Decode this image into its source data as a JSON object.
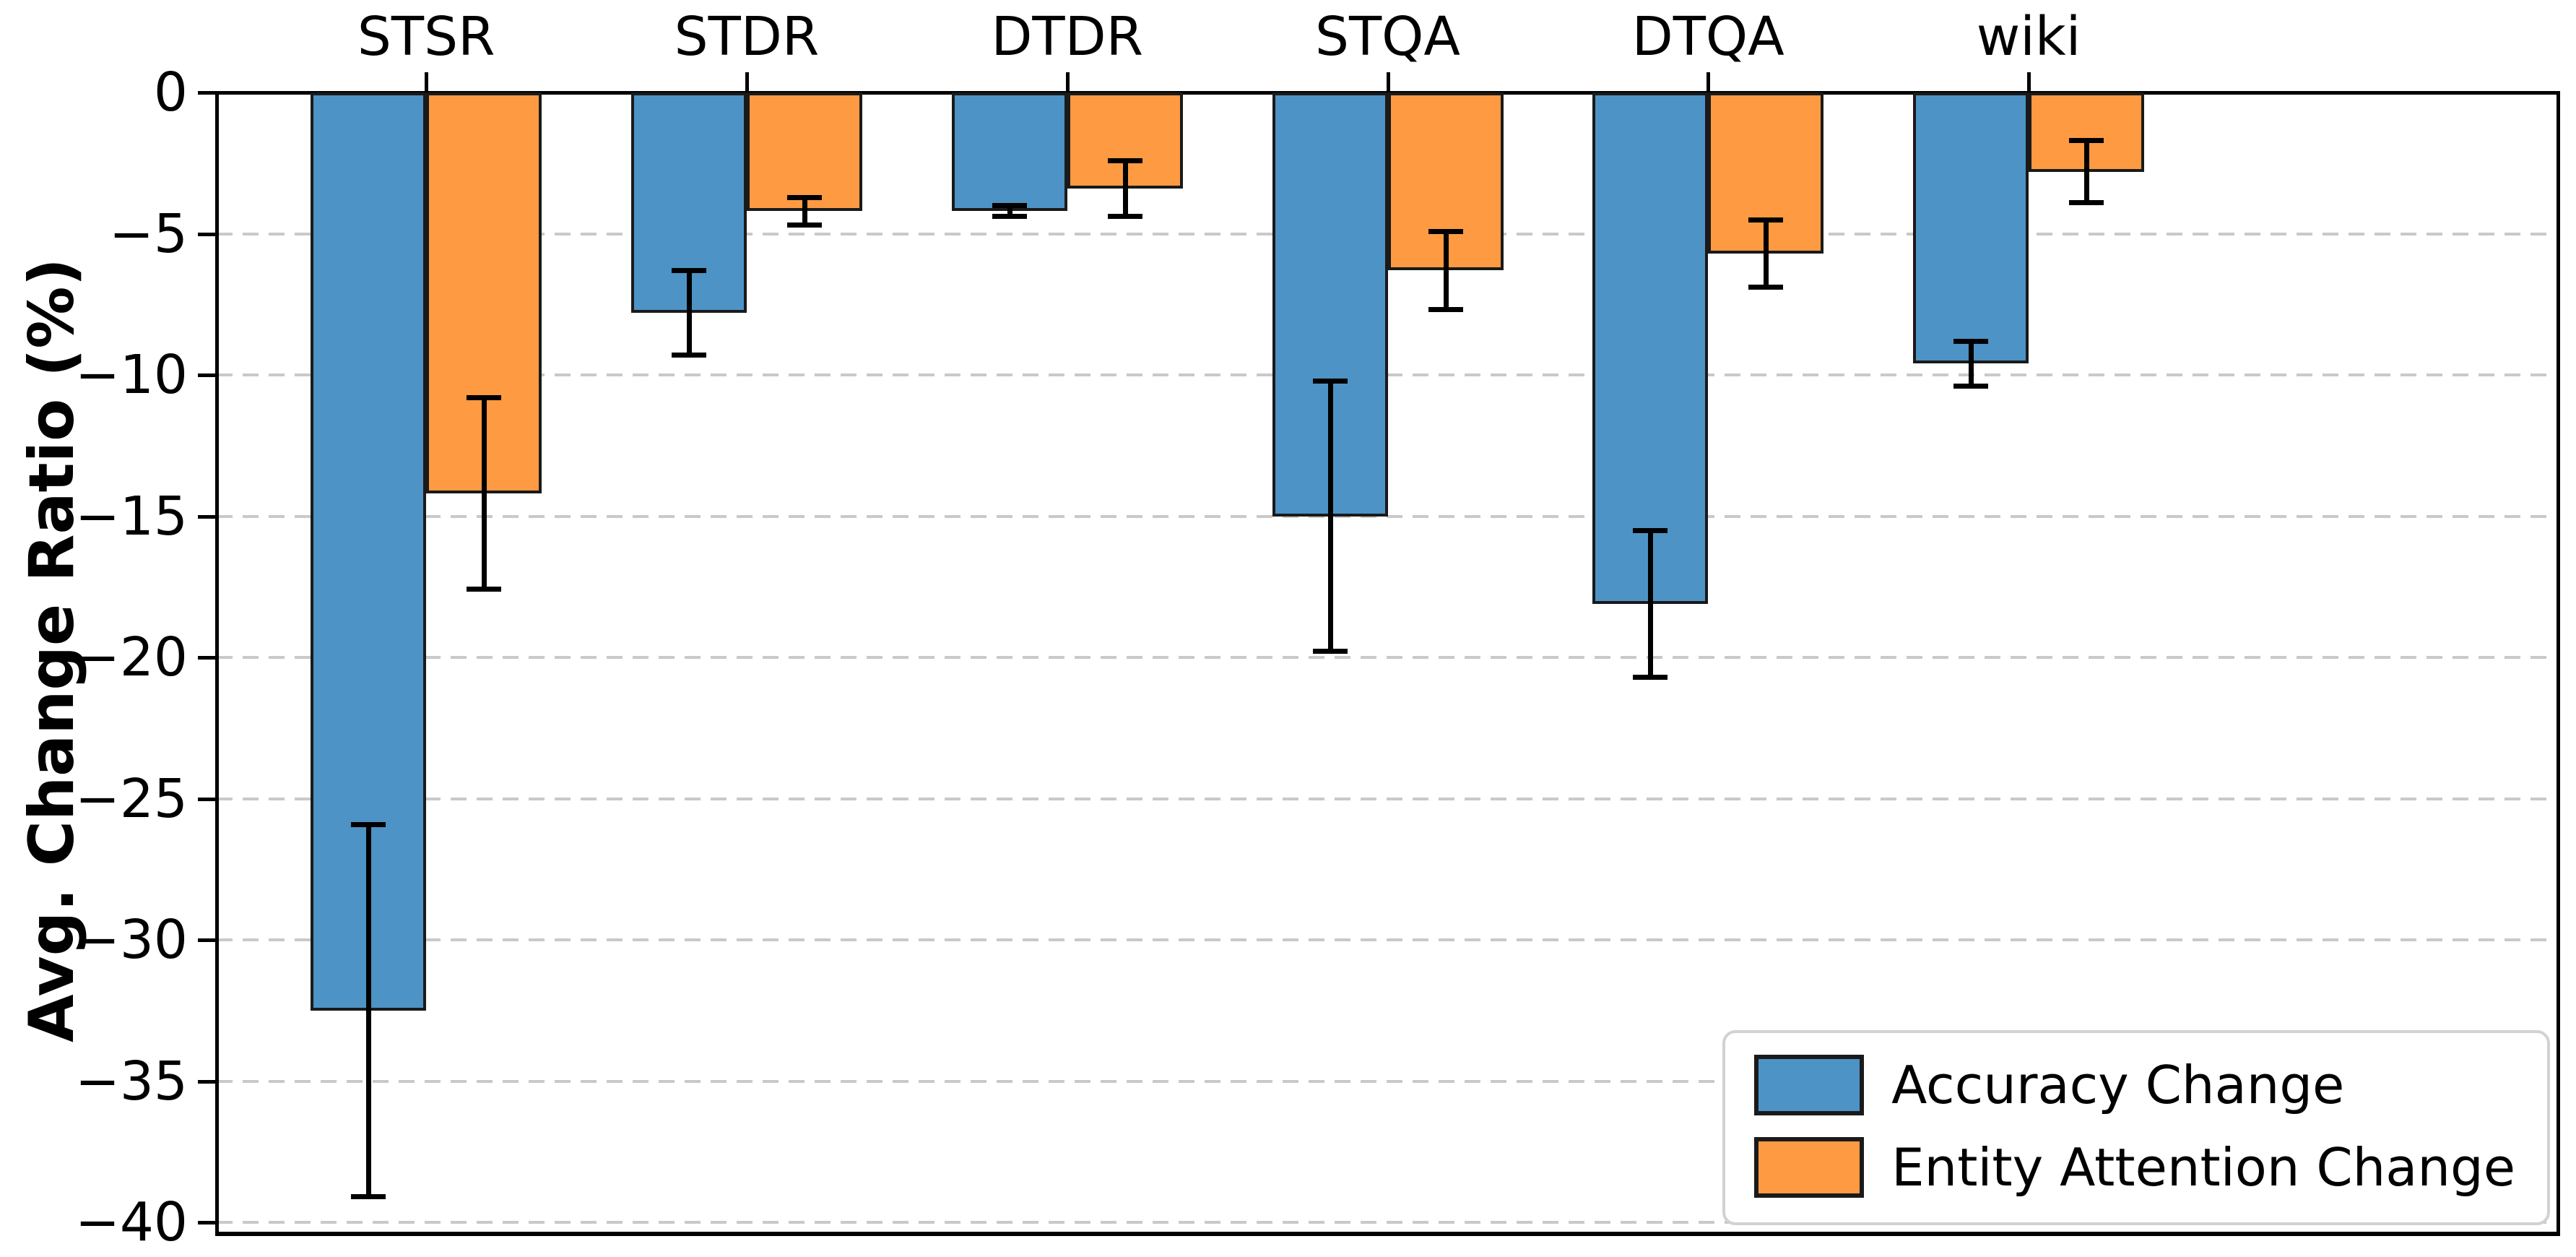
{
  "chart_data": {
    "type": "bar",
    "title": "",
    "xlabel": "",
    "ylabel": "Avg. Change Ratio (%)",
    "categories": [
      "STSR",
      "STDR",
      "DTDR",
      "STQA",
      "DTQA",
      "wiki"
    ],
    "series": [
      {
        "name": "Accuracy Change",
        "color": "#4D93C6",
        "values": [
          -32.5,
          -7.8,
          -4.2,
          -15.0,
          -18.1,
          -9.6
        ],
        "errors": [
          6.6,
          1.5,
          0.2,
          4.8,
          2.6,
          0.8
        ]
      },
      {
        "name": "Entity Attention Change",
        "color": "#FD9A42",
        "values": [
          -14.2,
          -4.2,
          -3.4,
          -6.3,
          -5.7,
          -2.8
        ],
        "errors": [
          3.4,
          0.5,
          1.0,
          1.4,
          1.2,
          1.1
        ]
      }
    ],
    "ylim": [
      -40.4,
      0
    ],
    "yticks": {
      "values": [
        0,
        -5,
        -10,
        -15,
        -20,
        -25,
        -30,
        -35,
        -40
      ],
      "labels": [
        "0",
        "−5",
        "−10",
        "−15",
        "−20",
        "−25",
        "−30",
        "−35",
        "−40"
      ]
    },
    "x_axis_position": "top",
    "grid": {
      "visible": true,
      "axis": "y",
      "style": "dashed",
      "color": "#c9c9c9"
    },
    "legend": {
      "position": "lower right"
    },
    "bar_edge_color": "#1a1a1a",
    "error_bar_color": "#000000",
    "background": "#ffffff"
  }
}
